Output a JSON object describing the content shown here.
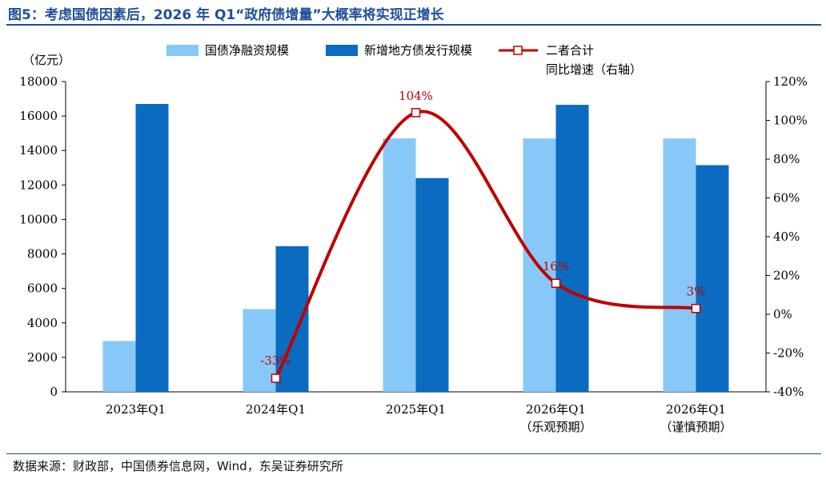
{
  "figure": {
    "title": "图5：考虑国债因素后，2026 年 Q1“政府债增量”大概率将实现正增长",
    "source": "数据来源：财政部，中国债券信息网，Wind，东吴证券研究所"
  },
  "colors": {
    "bar1": "#87c8f8",
    "bar2": "#0a6bc1",
    "line": "#c00000",
    "title": "#1f4e9b"
  },
  "chart_data": {
    "type": "bar",
    "categories": [
      [
        "2023年Q1"
      ],
      [
        "2024年Q1"
      ],
      [
        "2025年Q1"
      ],
      [
        "2026年Q1",
        "（乐观预期）"
      ],
      [
        "2026年Q1",
        "（谨慎预期）"
      ]
    ],
    "series": [
      {
        "name": "国债净融资规模",
        "type": "bar",
        "axis": "left",
        "values": [
          2950,
          4800,
          14700,
          14700,
          14700
        ]
      },
      {
        "name": "新增地方债发行规模",
        "type": "bar",
        "axis": "left",
        "values": [
          16700,
          8450,
          12400,
          16650,
          13150
        ]
      },
      {
        "name": "二者合计同比增速（右轴）",
        "legend_lines": [
          "二者合计",
          "同比增速（右轴）"
        ],
        "type": "line",
        "axis": "right",
        "values": [
          null,
          -33,
          104,
          16,
          3
        ],
        "labels": [
          "",
          "-33%",
          "104%",
          "16%",
          "3%"
        ]
      }
    ],
    "ylabel": "（亿元）",
    "ylim": [
      0,
      18000
    ],
    "yticks": [
      0,
      2000,
      4000,
      6000,
      8000,
      10000,
      12000,
      14000,
      16000,
      18000
    ],
    "y2lim": [
      -40,
      120
    ],
    "y2ticks": [
      "-40%",
      "-20%",
      "0%",
      "20%",
      "40%",
      "60%",
      "80%",
      "100%",
      "120%"
    ],
    "legend": "top",
    "grid": false
  }
}
